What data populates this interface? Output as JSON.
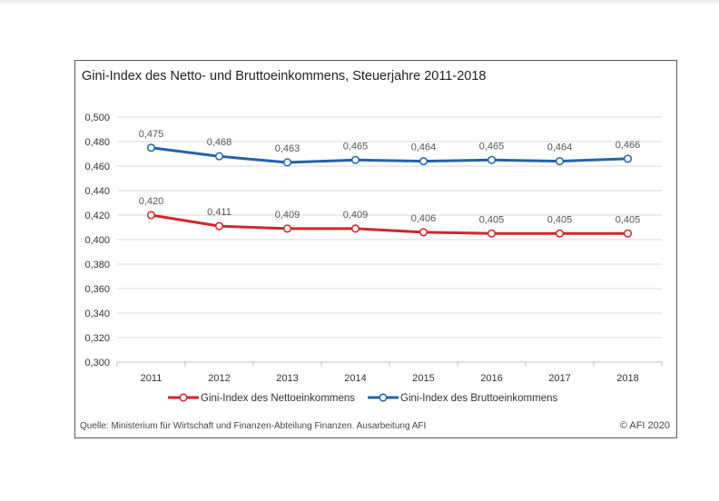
{
  "chart_data": {
    "type": "line",
    "title": "Gini-Index des Netto- und Bruttoeinkommens, Steuerjahre 2011-2018",
    "categories": [
      "2011",
      "2012",
      "2013",
      "2014",
      "2015",
      "2016",
      "2017",
      "2018"
    ],
    "y_ticks": [
      "0,300",
      "0,320",
      "0,340",
      "0,360",
      "0,380",
      "0,400",
      "0,420",
      "0,440",
      "0,460",
      "0,480",
      "0,500"
    ],
    "ylim": [
      0.3,
      0.5
    ],
    "grid": true,
    "legend_position": "bottom",
    "series": [
      {
        "name": "Gini-Index des Nettoeinkommens",
        "color": "#d0262e",
        "values": [
          0.42,
          0.411,
          0.409,
          0.409,
          0.406,
          0.405,
          0.405,
          0.405
        ],
        "labels": [
          "0,420",
          "0,411",
          "0,409",
          "0,409",
          "0,406",
          "0,405",
          "0,405",
          "0,405"
        ]
      },
      {
        "name": "Gini-Index des Bruttoeinkommens",
        "color": "#2563a6",
        "values": [
          0.475,
          0.468,
          0.463,
          0.465,
          0.464,
          0.465,
          0.464,
          0.466
        ],
        "labels": [
          "0,475",
          "0,468",
          "0,463",
          "0,465",
          "0,464",
          "0,465",
          "0,464",
          "0,466"
        ]
      }
    ],
    "source": "Quelle: Ministerium für Wirtschaft und Finanzen-Abteilung Finanzen.  Ausarbeitung AFI",
    "copyright": "© AFI 2020"
  }
}
